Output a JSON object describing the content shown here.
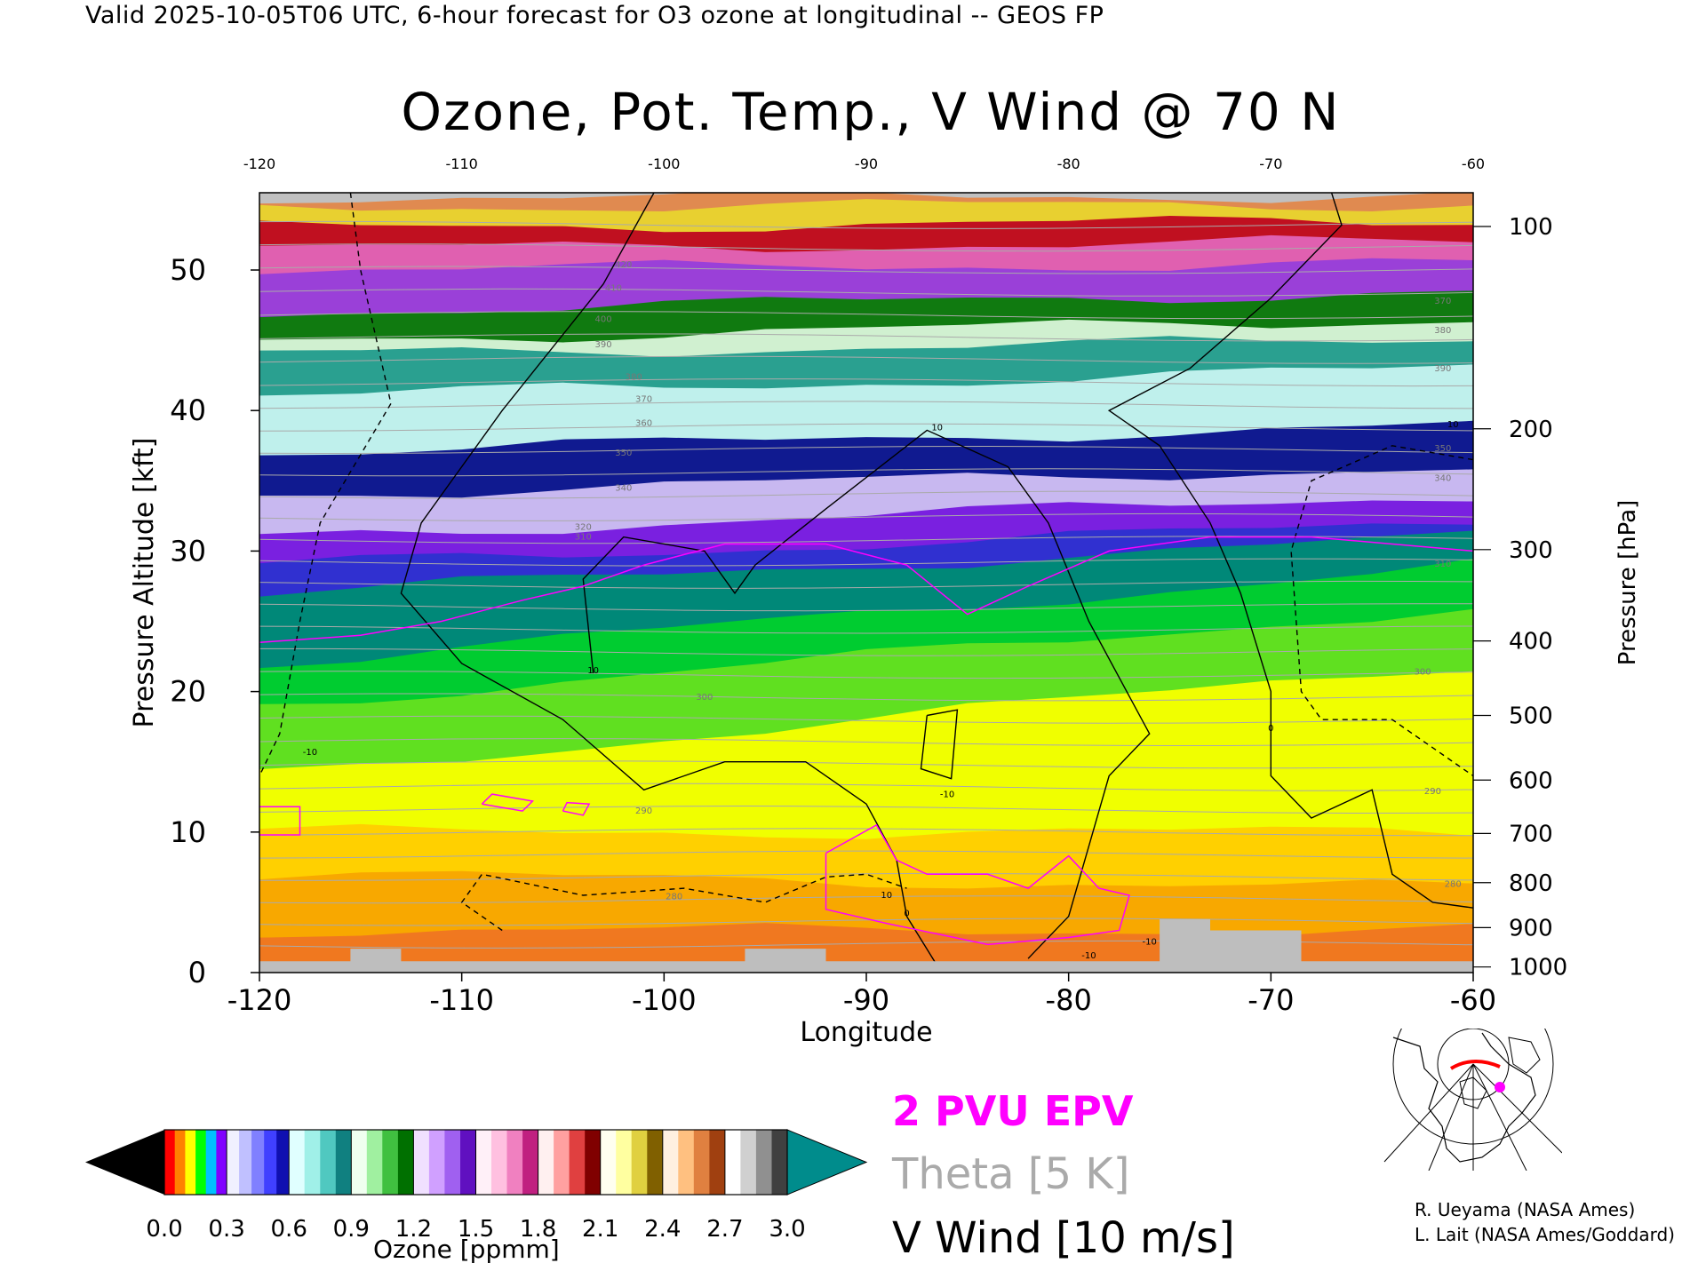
{
  "header": {
    "valid_line": "Valid 2025-10-05T06 UTC, 6-hour forecast for O3 ozone at longitudinal -- GEOS FP",
    "title": "Ozone, Pot. Temp., V Wind @ 70 N"
  },
  "chart_data": {
    "type": "heatmap",
    "title": "Ozone, Pot. Temp., V Wind @ 70 N",
    "xlabel": "Longitude",
    "ylabel_left": "Pressure Altitude [kft]",
    "ylabel_right": "Pressure [hPa]",
    "xlim": [
      -120,
      -60
    ],
    "ylim_kft": [
      0,
      55.5
    ],
    "x_ticks": [
      "-120",
      "-110",
      "-100",
      "-90",
      "-80",
      "-70",
      "-60"
    ],
    "x_ticks_top": [
      "-120",
      "-110",
      "-100",
      "-90",
      "-80",
      "-70",
      "-60"
    ],
    "y_ticks_kft": [
      {
        "value": 0,
        "label": "0"
      },
      {
        "value": 10,
        "label": "10"
      },
      {
        "value": 20,
        "label": "20"
      },
      {
        "value": 30,
        "label": "30"
      },
      {
        "value": 40,
        "label": "40"
      },
      {
        "value": 50,
        "label": "50"
      }
    ],
    "pressure_ticks": [
      {
        "kft": 0.4,
        "label": "1000"
      },
      {
        "kft": 3.2,
        "label": "900"
      },
      {
        "kft": 6.4,
        "label": "800"
      },
      {
        "kft": 9.9,
        "label": "700"
      },
      {
        "kft": 13.7,
        "label": "600"
      },
      {
        "kft": 18.3,
        "label": "500"
      },
      {
        "kft": 23.6,
        "label": "400"
      },
      {
        "kft": 30.1,
        "label": "300"
      },
      {
        "kft": 38.7,
        "label": "200"
      },
      {
        "kft": 53.1,
        "label": "100"
      }
    ],
    "ozone_bands": [
      {
        "color": "#f07820",
        "kft_left": 0,
        "kft_right": 0
      },
      {
        "color": "#f8a800",
        "kft_left": 3,
        "kft_right": 3
      },
      {
        "color": "#ffd000",
        "kft_left": 7,
        "kft_right": 6
      },
      {
        "color": "#f0ff00",
        "kft_left": 10,
        "kft_right": 10
      },
      {
        "color": "#60e020",
        "kft_left": 14,
        "kft_right": 22
      },
      {
        "color": "#00cc30",
        "kft_left": 19,
        "kft_right": 26
      },
      {
        "color": "#008878",
        "kft_left": 22,
        "kft_right": 29
      },
      {
        "color": "#3030d0",
        "kft_left": 27,
        "kft_right": 31
      },
      {
        "color": "#7a20e0",
        "kft_left": 29,
        "kft_right": 32
      },
      {
        "color": "#c8b8f0",
        "kft_left": 31,
        "kft_right": 34
      },
      {
        "color": "#101a90",
        "kft_left": 34,
        "kft_right": 36
      },
      {
        "color": "#bff0ec",
        "kft_left": 37,
        "kft_right": 39
      },
      {
        "color": "#2aa090",
        "kft_left": 41,
        "kft_right": 43
      },
      {
        "color": "#d0f0d0",
        "kft_left": 44,
        "kft_right": 45
      },
      {
        "color": "#107a10",
        "kft_left": 45,
        "kft_right": 46.5
      },
      {
        "color": "#9a40d8",
        "kft_left": 47,
        "kft_right": 48.5
      },
      {
        "color": "#e060b0",
        "kft_left": 50,
        "kft_right": 50.5
      },
      {
        "color": "#c01020",
        "kft_left": 51.5,
        "kft_right": 52
      },
      {
        "color": "#e8d030",
        "kft_left": 53,
        "kft_right": 53.5
      },
      {
        "color": "#e08a50",
        "kft_left": 54.5,
        "kft_right": 54.7
      },
      {
        "color": "#c0c0c0",
        "kft_left": 55.2,
        "kft_right": 55.3
      }
    ],
    "theta_labels": [
      {
        "lon": -104,
        "kft": 30.8,
        "label": "310"
      },
      {
        "lon": -104,
        "kft": 31.5,
        "label": "320"
      },
      {
        "lon": -102,
        "kft": 34.3,
        "label": "340"
      },
      {
        "lon": -102,
        "kft": 36.8,
        "label": "350"
      },
      {
        "lon": -101,
        "kft": 38.9,
        "label": "360"
      },
      {
        "lon": -101,
        "kft": 40.6,
        "label": "370"
      },
      {
        "lon": -101.5,
        "kft": 42.2,
        "label": "380"
      },
      {
        "lon": -103,
        "kft": 44.5,
        "label": "390"
      },
      {
        "lon": -103,
        "kft": 46.3,
        "label": "400"
      },
      {
        "lon": -102.5,
        "kft": 48.5,
        "label": "410"
      },
      {
        "lon": -102,
        "kft": 50.2,
        "label": "420"
      },
      {
        "lon": -101,
        "kft": 11.3,
        "label": "290"
      },
      {
        "lon": -99.5,
        "kft": 5.2,
        "label": "280"
      },
      {
        "lon": -98,
        "kft": 19.4,
        "label": "300"
      },
      {
        "lon": -61.5,
        "kft": 42.8,
        "label": "390"
      },
      {
        "lon": -61.5,
        "kft": 45.5,
        "label": "380"
      },
      {
        "lon": -61.5,
        "kft": 47.6,
        "label": "370"
      },
      {
        "lon": -61.5,
        "kft": 37.1,
        "label": "350"
      },
      {
        "lon": -61.5,
        "kft": 35.0,
        "label": "340"
      },
      {
        "lon": -61.5,
        "kft": 28.9,
        "label": "310"
      },
      {
        "lon": -62.5,
        "kft": 21.2,
        "label": "300"
      },
      {
        "lon": -62,
        "kft": 12.7,
        "label": "290"
      },
      {
        "lon": -61,
        "kft": 6.1,
        "label": "280"
      }
    ],
    "wind_labels": [
      {
        "lon": -117.5,
        "kft": 15.5,
        "label": "-10"
      },
      {
        "lon": -103.5,
        "kft": 21.3,
        "label": "10"
      },
      {
        "lon": -86.5,
        "kft": 38.6,
        "label": "10"
      },
      {
        "lon": -86,
        "kft": 12.5,
        "label": "-10"
      },
      {
        "lon": -89,
        "kft": 5.3,
        "label": "10"
      },
      {
        "lon": -88,
        "kft": 4.0,
        "label": "0"
      },
      {
        "lon": -70,
        "kft": 17.2,
        "label": "0"
      },
      {
        "lon": -79,
        "kft": 1.0,
        "label": "-10"
      },
      {
        "lon": -76,
        "kft": 2.0,
        "label": "-10"
      },
      {
        "lon": -61,
        "kft": 38.8,
        "label": "10"
      }
    ],
    "colorbar": {
      "title": "Ozone [ppmm]",
      "tick_labels": [
        "0.0",
        "0.3",
        "0.6",
        "0.9",
        "1.2",
        "1.5",
        "1.8",
        "2.1",
        "2.4",
        "2.7",
        "3.0"
      ],
      "min": 0.0,
      "max": 3.0,
      "under_color": "#000000",
      "over_color": "#008c8c",
      "segments": [
        [
          "#ff0000",
          "#ff8000",
          "#ffff00",
          "#00ff00",
          "#00c0ff",
          "#8000ff"
        ],
        [
          "#f0f0ff",
          "#c0c0ff",
          "#8080ff",
          "#4040ff",
          "#1010b0"
        ],
        [
          "#e0ffff",
          "#a0f0e8",
          "#50c8c0",
          "#108080"
        ],
        [
          "#f0fff0",
          "#a0f0a0",
          "#40c040",
          "#007000"
        ],
        [
          "#f0e0ff",
          "#d0a0ff",
          "#a060f0",
          "#6010c0"
        ],
        [
          "#fff0f8",
          "#ffc0e0",
          "#f080c0",
          "#c02080"
        ],
        [
          "#fff0f0",
          "#ffa0a0",
          "#e04040",
          "#800000"
        ],
        [
          "#fffff0",
          "#ffffa0",
          "#e0d040",
          "#806000"
        ],
        [
          "#fff0e0",
          "#ffc080",
          "#e08040",
          "#a04010"
        ],
        [
          "#ffffff",
          "#d0d0d0",
          "#909090",
          "#404040"
        ]
      ]
    }
  },
  "legend": {
    "epv": "2 PVU EPV",
    "theta": "Theta [5 K]",
    "wind": "V Wind [10 m/s]"
  },
  "credits": {
    "line1": "R. Ueyama (NASA Ames)",
    "line2": "L. Lait (NASA Ames/Goddard)"
  },
  "colors": {
    "epv": "#ff00ff",
    "theta": "#aaaaaa",
    "wind": "#000000",
    "ground": "#bebebe",
    "marker": "#ff00ff",
    "section_line": "#ff0000"
  }
}
